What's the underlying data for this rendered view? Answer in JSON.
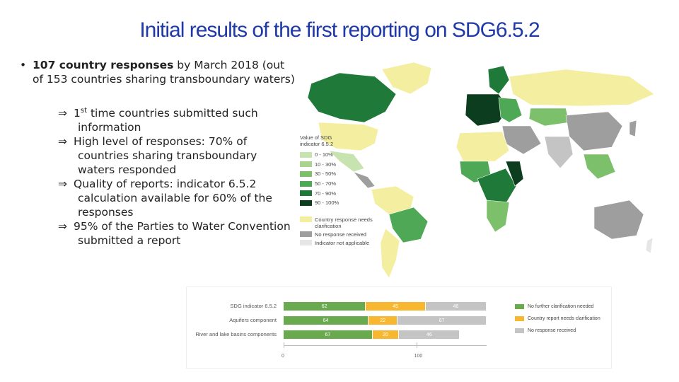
{
  "slide": {
    "title": "Initial results of the first reporting on SDG6.5.2",
    "bullet": {
      "marker": "•",
      "bold": "107 country responses",
      "text": " by March 2018 (out of 153 countries sharing transboundary waters)"
    },
    "subpoints": [
      {
        "arrow": "⇒",
        "pre": "1",
        "sup": "st",
        "text": " time countries submitted such information"
      },
      {
        "arrow": "⇒",
        "pre": "",
        "sup": "",
        "text": "High level of responses: 70% of countries sharing transboundary waters responded"
      },
      {
        "arrow": "⇒",
        "pre": "",
        "sup": "",
        "text": "Quality of reports: indicator 6.5.2 calculation available for 60% of the responses"
      },
      {
        "arrow": "⇒",
        "pre": "",
        "sup": "",
        "text": "95% of the Parties to Water Convention submitted a report"
      }
    ]
  },
  "map_legend": {
    "title": "Value of SDG indicator 6.5.2",
    "ranges": [
      {
        "label": "0 - 10%",
        "color": "#c7e3b0"
      },
      {
        "label": "10 - 30%",
        "color": "#a9d38f"
      },
      {
        "label": "30 - 50%",
        "color": "#7dc06b"
      },
      {
        "label": "50 - 70%",
        "color": "#4fa856"
      },
      {
        "label": "70 - 90%",
        "color": "#1f7a3a"
      },
      {
        "label": "90 - 100%",
        "color": "#0d3d1f"
      }
    ],
    "status": [
      {
        "label": "Country response needs clarification",
        "color": "#f4efa0"
      },
      {
        "label": "No response received",
        "color": "#9e9e9e"
      },
      {
        "label": "Indicator not applicable",
        "color": "#e6e6e6"
      }
    ]
  },
  "chart_data": {
    "type": "bar",
    "orientation": "horizontal",
    "stacked": true,
    "categories": [
      "SDG indicator 6.5.2",
      "Aquifers component",
      "River and lake basins components"
    ],
    "series": [
      {
        "name": "No further clarification needed",
        "color": "#6aaa4f",
        "values": [
          62,
          64,
          67
        ]
      },
      {
        "name": "Country report needs clarification",
        "color": "#f7b731",
        "values": [
          45,
          22,
          20
        ]
      },
      {
        "name": "No response received",
        "color": "#c4c4c4",
        "values": [
          46,
          67,
          46
        ]
      }
    ],
    "xticks": [
      "0",
      "100"
    ],
    "xlim": [
      0,
      153
    ],
    "legend_position": "right"
  }
}
